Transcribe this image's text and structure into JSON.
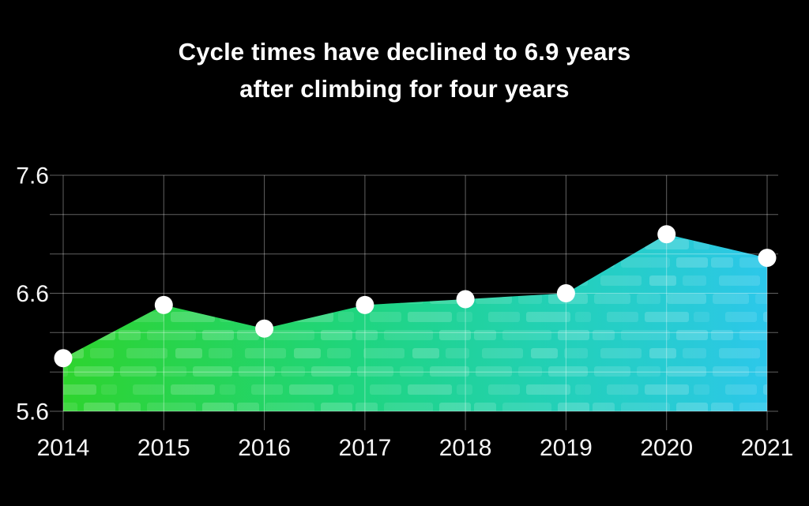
{
  "title": {
    "line1": "Cycle times have declined to 6.9 years",
    "line2": "after climbing for four years"
  },
  "chart_data": {
    "type": "area",
    "title": "Cycle times have declined to 6.9 years after climbing for four years",
    "categories": [
      "2014",
      "2015",
      "2016",
      "2017",
      "2018",
      "2019",
      "2020",
      "2021"
    ],
    "values": [
      6.05,
      6.5,
      6.3,
      6.5,
      6.55,
      6.6,
      7.1,
      6.9
    ],
    "unit": "years",
    "xlabel": "",
    "ylabel": "",
    "ylim": [
      5.6,
      7.6
    ],
    "yticks": [
      7.6,
      6.6,
      5.6
    ],
    "ytick_labels": [
      "7.6",
      "6.6",
      "5.6"
    ],
    "minor_gridlines_per_major": 3,
    "grid": true,
    "legend": false,
    "point_color": "#ffffff",
    "gradient": [
      "#2ed42e",
      "#1fd57f",
      "#23d0bb",
      "#2cc7ea"
    ],
    "gridline_color": "rgba(255,255,255,0.38)",
    "tick_label_color": "#f7f7f7",
    "background_color": "#000000"
  }
}
